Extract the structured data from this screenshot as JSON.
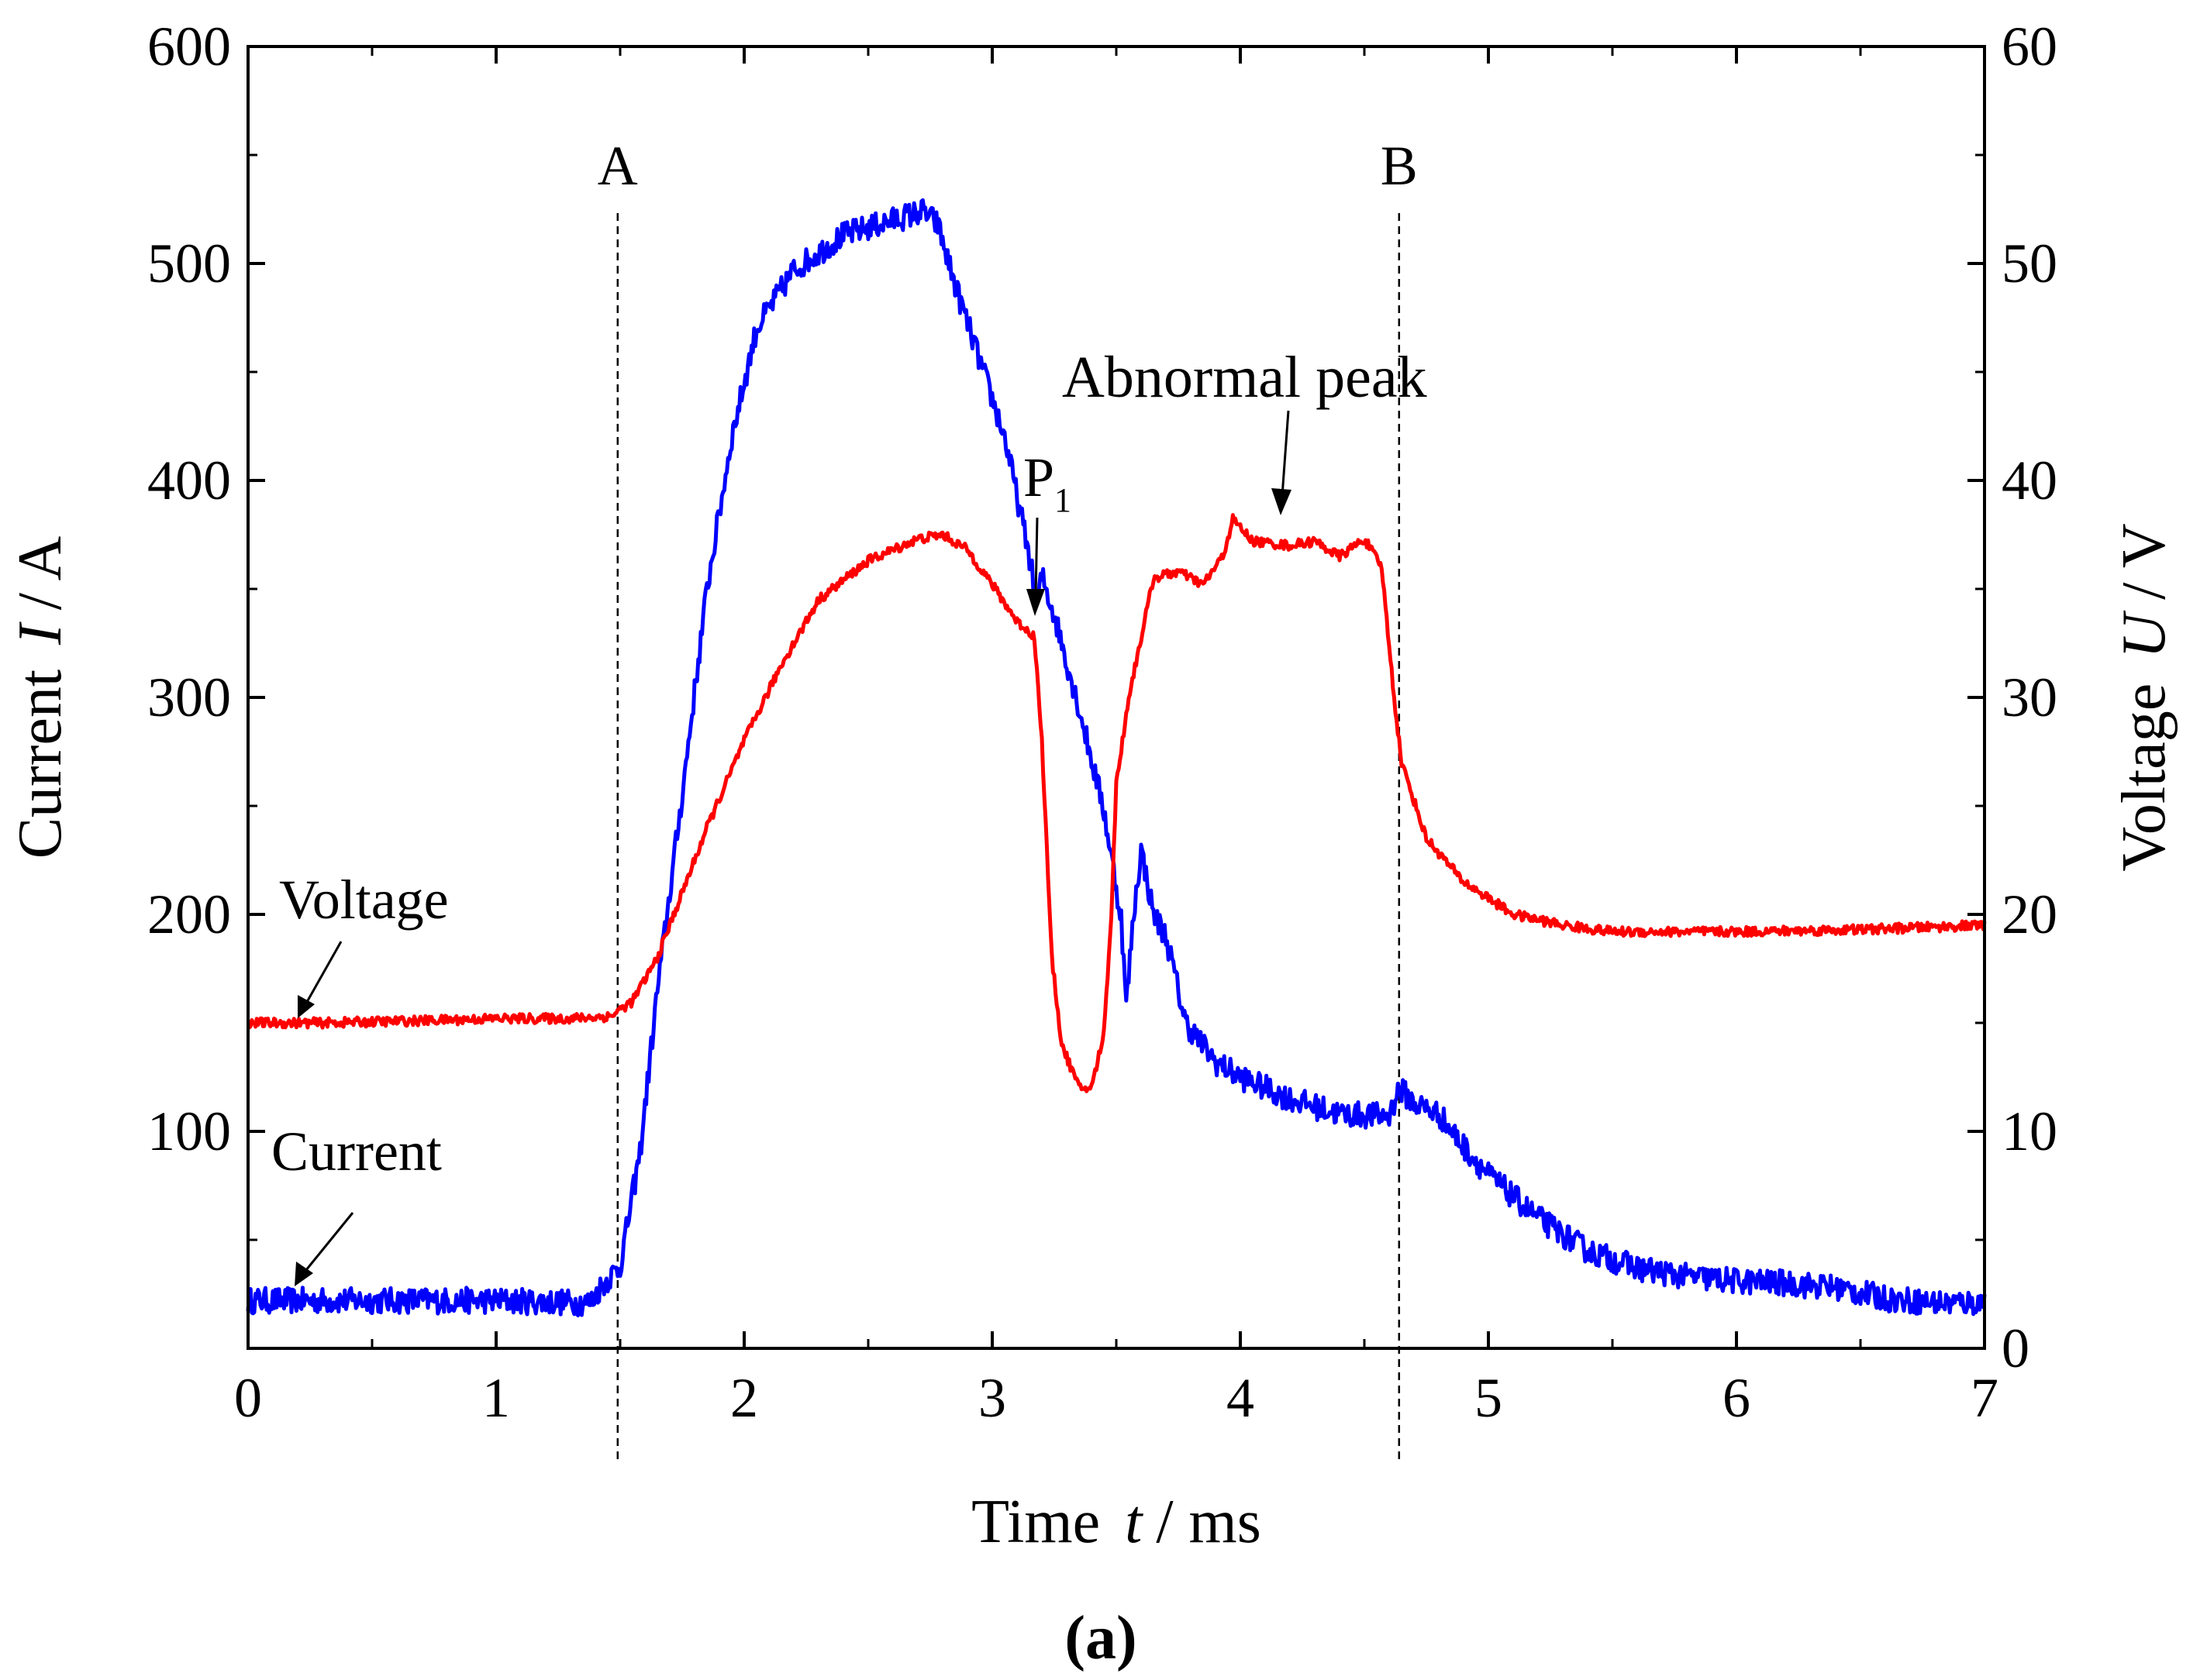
{
  "chart_data": {
    "type": "line",
    "title": "",
    "caption": "(a)",
    "xlabel": {
      "prefix": "Time",
      "symbol": "t",
      "unit": "/ ms"
    },
    "ylabel_left": {
      "prefix": "Current",
      "symbol": "I",
      "unit": "/ A"
    },
    "ylabel_right": {
      "prefix": "Voltage",
      "symbol": "U",
      "unit": "/ V"
    },
    "xlim": [
      0,
      7
    ],
    "ylim_left": [
      0,
      600
    ],
    "ylim_right": [
      0,
      60
    ],
    "x_ticks": [
      0,
      1,
      2,
      3,
      4,
      5,
      6,
      7
    ],
    "y_left_ticks": [
      100,
      200,
      300,
      400,
      500,
      600
    ],
    "y_right_ticks": [
      0,
      10,
      20,
      30,
      40,
      50,
      60
    ],
    "series": [
      {
        "name": "Current",
        "axis": "left",
        "color": "#0000ff",
        "noise": 6,
        "points": [
          [
            0,
            22
          ],
          [
            0.5,
            22
          ],
          [
            1.0,
            22
          ],
          [
            1.38,
            21
          ],
          [
            1.42,
            28
          ],
          [
            1.5,
            38
          ],
          [
            1.58,
            90
          ],
          [
            1.65,
            165
          ],
          [
            1.75,
            255
          ],
          [
            1.85,
            350
          ],
          [
            1.95,
            420
          ],
          [
            2.05,
            470
          ],
          [
            2.2,
            497
          ],
          [
            2.4,
            513
          ],
          [
            2.6,
            520
          ],
          [
            2.72,
            524
          ],
          [
            2.78,
            518
          ],
          [
            2.85,
            490
          ],
          [
            2.95,
            455
          ],
          [
            3.05,
            420
          ],
          [
            3.15,
            365
          ],
          [
            3.18,
            342
          ],
          [
            3.2,
            356
          ],
          [
            3.25,
            338
          ],
          [
            3.35,
            295
          ],
          [
            3.45,
            248
          ],
          [
            3.52,
            198
          ],
          [
            3.54,
            158
          ],
          [
            3.57,
            200
          ],
          [
            3.6,
            230
          ],
          [
            3.65,
            200
          ],
          [
            3.7,
            190
          ],
          [
            3.78,
            150
          ],
          [
            3.9,
            132
          ],
          [
            4.0,
            125
          ],
          [
            4.2,
            115
          ],
          [
            4.4,
            108
          ],
          [
            4.6,
            107
          ],
          [
            4.64,
            120
          ],
          [
            4.7,
            113
          ],
          [
            4.8,
            108
          ],
          [
            4.9,
            93
          ],
          [
            5.0,
            80
          ],
          [
            5.2,
            60
          ],
          [
            5.4,
            45
          ],
          [
            5.6,
            37
          ],
          [
            5.8,
            33
          ],
          [
            6.0,
            31
          ],
          [
            6.2,
            30
          ],
          [
            6.4,
            28
          ],
          [
            6.6,
            23
          ],
          [
            6.8,
            21
          ],
          [
            7.0,
            21
          ]
        ]
      },
      {
        "name": "Voltage",
        "axis": "right",
        "color": "#ff0000",
        "noise": 0.22,
        "points": [
          [
            0,
            15
          ],
          [
            0.3,
            15
          ],
          [
            0.7,
            15.1
          ],
          [
            1.0,
            15.2
          ],
          [
            1.3,
            15.2
          ],
          [
            1.46,
            15.3
          ],
          [
            1.55,
            16
          ],
          [
            1.65,
            18
          ],
          [
            1.75,
            21
          ],
          [
            1.85,
            24
          ],
          [
            2.0,
            28
          ],
          [
            2.15,
            31.5
          ],
          [
            2.3,
            34.5
          ],
          [
            2.5,
            36.3
          ],
          [
            2.7,
            37.3
          ],
          [
            2.8,
            37.5
          ],
          [
            2.9,
            36.8
          ],
          [
            3.0,
            35.2
          ],
          [
            3.1,
            33.5
          ],
          [
            3.17,
            32.8
          ],
          [
            3.2,
            28
          ],
          [
            3.24,
            18
          ],
          [
            3.28,
            14
          ],
          [
            3.35,
            12
          ],
          [
            3.4,
            12
          ],
          [
            3.45,
            14.5
          ],
          [
            3.48,
            20
          ],
          [
            3.5,
            26
          ],
          [
            3.55,
            30
          ],
          [
            3.65,
            35.5
          ],
          [
            3.75,
            35.8
          ],
          [
            3.85,
            35.2
          ],
          [
            3.93,
            36.5
          ],
          [
            3.97,
            38.2
          ],
          [
            4.05,
            37.2
          ],
          [
            4.2,
            37
          ],
          [
            4.3,
            37.2
          ],
          [
            4.4,
            36.5
          ],
          [
            4.5,
            37.3
          ],
          [
            4.57,
            36
          ],
          [
            4.62,
            30
          ],
          [
            4.65,
            27
          ],
          [
            4.75,
            23.5
          ],
          [
            4.9,
            21.5
          ],
          [
            5.1,
            20
          ],
          [
            5.3,
            19.5
          ],
          [
            5.5,
            19.2
          ],
          [
            6.0,
            19.2
          ],
          [
            6.5,
            19.3
          ],
          [
            7.0,
            19.5
          ]
        ]
      }
    ],
    "markers": [
      {
        "label": "A",
        "x": 1.49
      },
      {
        "label": "B",
        "x": 4.64
      }
    ],
    "annotations": {
      "voltage_label": "Voltage",
      "current_label": "Current",
      "abnormal_label": "Abnormal peak",
      "p1_label": "P",
      "p1_sub": "1"
    },
    "colors": {
      "current": "#0000ff",
      "voltage": "#ff0000",
      "axis": "#000000"
    }
  }
}
